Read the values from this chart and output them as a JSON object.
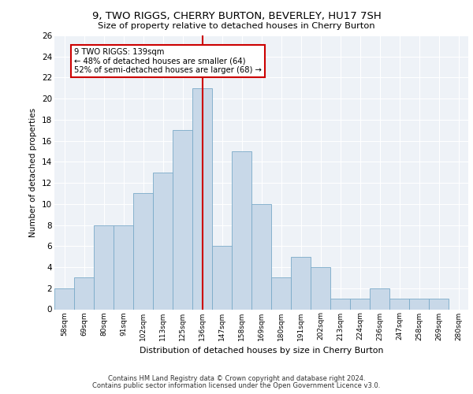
{
  "title1": "9, TWO RIGGS, CHERRY BURTON, BEVERLEY, HU17 7SH",
  "title2": "Size of property relative to detached houses in Cherry Burton",
  "xlabel": "Distribution of detached houses by size in Cherry Burton",
  "ylabel": "Number of detached properties",
  "categories": [
    "58sqm",
    "69sqm",
    "80sqm",
    "91sqm",
    "102sqm",
    "113sqm",
    "125sqm",
    "136sqm",
    "147sqm",
    "158sqm",
    "169sqm",
    "180sqm",
    "191sqm",
    "202sqm",
    "213sqm",
    "224sqm",
    "236sqm",
    "247sqm",
    "258sqm",
    "269sqm",
    "280sqm"
  ],
  "values": [
    2,
    3,
    8,
    8,
    11,
    13,
    17,
    21,
    6,
    15,
    10,
    3,
    5,
    4,
    1,
    1,
    2,
    1,
    1,
    1,
    0
  ],
  "bar_color": "#c8d8e8",
  "bar_edge_color": "#7aaac8",
  "vline_x_index": 7,
  "vline_color": "#cc0000",
  "annotation_text": "9 TWO RIGGS: 139sqm\n← 48% of detached houses are smaller (64)\n52% of semi-detached houses are larger (68) →",
  "annotation_box_color": "#ffffff",
  "annotation_box_edge": "#cc0000",
  "ylim": [
    0,
    26
  ],
  "yticks": [
    0,
    2,
    4,
    6,
    8,
    10,
    12,
    14,
    16,
    18,
    20,
    22,
    24,
    26
  ],
  "background_color": "#eef2f7",
  "footer1": "Contains HM Land Registry data © Crown copyright and database right 2024.",
  "footer2": "Contains public sector information licensed under the Open Government Licence v3.0."
}
